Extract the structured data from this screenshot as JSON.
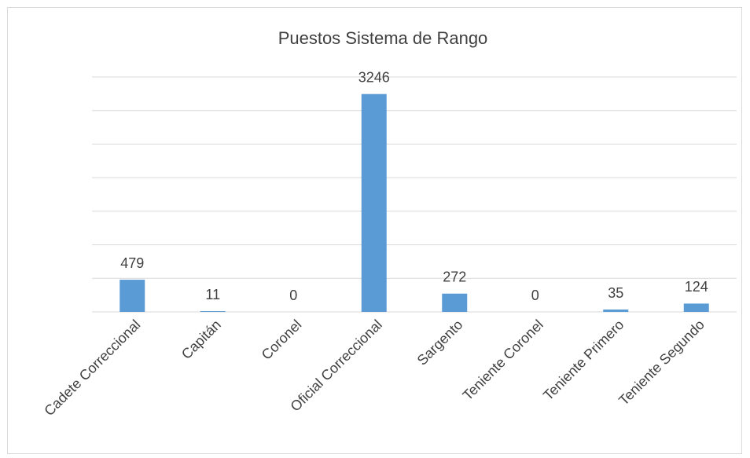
{
  "chart_data": {
    "type": "bar",
    "title": "Puestos Sistema de Rango",
    "categories": [
      "Cadete Correccional",
      "Capitán",
      "Coronel",
      "Oficial Correccional",
      "Sargento",
      "Teniente Coronel",
      "Teniente Primero",
      "Teniente Segundo"
    ],
    "values": [
      479,
      11,
      0,
      3246,
      272,
      0,
      35,
      124
    ],
    "color": "#5b9bd5",
    "ylim": [
      0,
      3500
    ],
    "yticks": [
      0,
      500,
      1000,
      1500,
      2000,
      2500,
      3000,
      3500
    ],
    "grid": true
  }
}
